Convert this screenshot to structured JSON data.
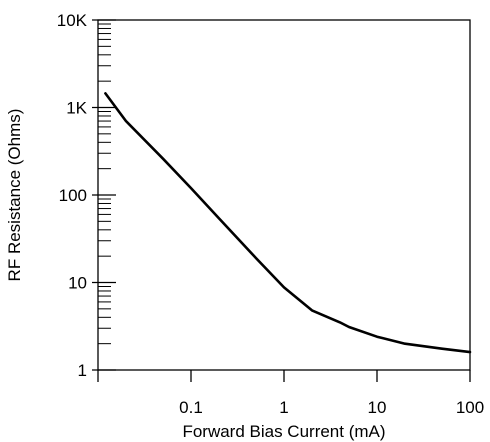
{
  "chart_data": {
    "type": "line",
    "xlabel": "Forward Bias Current (mA)",
    "ylabel": "RF Resistance (Ohms)",
    "xscale": "log",
    "yscale": "log",
    "xlim": [
      0.01,
      100
    ],
    "ylim": [
      1,
      10000
    ],
    "grid": false,
    "legend": "none",
    "x_ticks": [
      {
        "value": 0.1,
        "label": "0.1"
      },
      {
        "value": 1,
        "label": "1"
      },
      {
        "value": 10,
        "label": "10"
      },
      {
        "value": 100,
        "label": "100"
      }
    ],
    "y_ticks": [
      {
        "value": 1,
        "label": "1"
      },
      {
        "value": 10,
        "label": "10"
      },
      {
        "value": 100,
        "label": "100"
      },
      {
        "value": 1000,
        "label": "1K"
      },
      {
        "value": 10000,
        "label": "10K"
      }
    ],
    "series": [
      {
        "color": "#000000",
        "points": [
          [
            0.012,
            1450
          ],
          [
            0.02,
            700
          ],
          [
            0.05,
            260
          ],
          [
            0.1,
            120
          ],
          [
            0.2,
            54
          ],
          [
            0.5,
            19
          ],
          [
            1,
            8.8
          ],
          [
            2,
            4.8
          ],
          [
            4,
            3.5
          ],
          [
            5,
            3.1
          ],
          [
            10,
            2.4
          ],
          [
            20,
            2.0
          ],
          [
            50,
            1.75
          ],
          [
            100,
            1.6
          ]
        ]
      }
    ]
  }
}
